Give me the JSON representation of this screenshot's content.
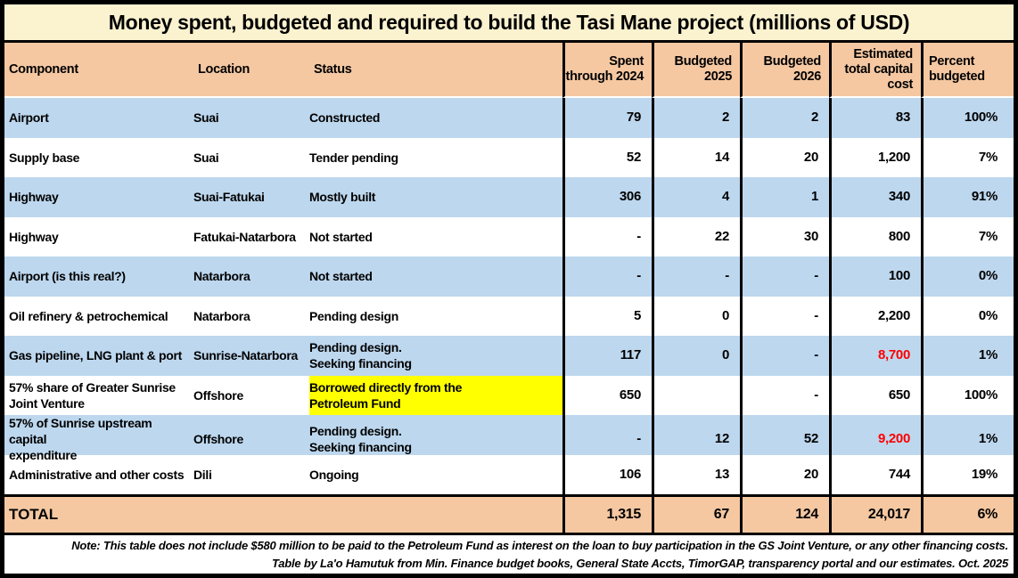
{
  "title": "Money spent, budgeted and required to build the Tasi Mane project (millions of USD)",
  "table": {
    "columns": [
      {
        "key": "component",
        "label": "Component"
      },
      {
        "key": "location",
        "label": "Location"
      },
      {
        "key": "status",
        "label": "Status"
      },
      {
        "key": "spent_2024",
        "label": "Spent through 2024"
      },
      {
        "key": "budgeted_2025",
        "label": "Budgeted 2025"
      },
      {
        "key": "budgeted_2026",
        "label": "Budgeted 2026"
      },
      {
        "key": "est_total",
        "label": "Estimated total capital cost"
      },
      {
        "key": "pct_budgeted",
        "label": "Percent budgeted"
      }
    ],
    "rows": [
      {
        "component": "Airport",
        "location": "Suai",
        "status": "Constructed",
        "spent_2024": "79",
        "budgeted_2025": "2",
        "budgeted_2026": "2",
        "est_total": "83",
        "pct_budgeted": "100%"
      },
      {
        "component": "Supply base",
        "location": "Suai",
        "status": "Tender pending",
        "spent_2024": "52",
        "budgeted_2025": "14",
        "budgeted_2026": "20",
        "est_total": "1,200",
        "pct_budgeted": "7%"
      },
      {
        "component": "Highway",
        "location": "Suai-Fatukai",
        "status": "Mostly built",
        "spent_2024": "306",
        "budgeted_2025": "4",
        "budgeted_2026": "1",
        "est_total": "340",
        "pct_budgeted": "91%"
      },
      {
        "component": "Highway",
        "location": "Fatukai-Natarbora",
        "status": "Not started",
        "spent_2024": "-",
        "budgeted_2025": "22",
        "budgeted_2026": "30",
        "est_total": "800",
        "pct_budgeted": "7%"
      },
      {
        "component": "Airport  (is this real?)",
        "location": "Natarbora",
        "status": "Not started",
        "spent_2024": "-",
        "budgeted_2025": "-",
        "budgeted_2026": "-",
        "est_total": "100",
        "pct_budgeted": "0%"
      },
      {
        "component": "Oil refinery & petrochemical",
        "location": "Natarbora",
        "status": "Pending design",
        "spent_2024": "5",
        "budgeted_2025": "0",
        "budgeted_2026": "-",
        "est_total": "2,200",
        "pct_budgeted": "0%"
      },
      {
        "component": "Gas pipeline, LNG plant & port",
        "location": "Sunrise-Natarbora",
        "status": "Pending design.\nSeeking financing",
        "spent_2024": "117",
        "budgeted_2025": "0",
        "budgeted_2026": "-",
        "est_total": "8,700",
        "est_total_red": true,
        "pct_budgeted": "1%"
      },
      {
        "component": "57% share of Greater Sunrise\nJoint Venture",
        "location": "Offshore",
        "status": "Borrowed directly from the\nPetroleum Fund",
        "status_highlight": true,
        "spent_2024": "650",
        "budgeted_2025": "",
        "budgeted_2026": "-",
        "est_total": "650",
        "pct_budgeted": "100%"
      },
      {
        "component": "57% of Sunrise upstream capital\nexpenditure",
        "location": "Offshore",
        "status": "Pending design.\nSeeking financing",
        "spent_2024": "-",
        "budgeted_2025": "12",
        "budgeted_2026": "52",
        "est_total": "9,200",
        "est_total_red": true,
        "pct_budgeted": "1%"
      },
      {
        "component": "Administrative and other costs",
        "location": "Dili",
        "status": "Ongoing",
        "spent_2024": "106",
        "budgeted_2025": "13",
        "budgeted_2026": "20",
        "est_total": "744",
        "pct_budgeted": "19%"
      }
    ],
    "total": {
      "label": "TOTAL",
      "spent_2024": "1,315",
      "budgeted_2025": "67",
      "budgeted_2026": "124",
      "est_total": "24,017",
      "pct_budgeted": "6%"
    }
  },
  "notes": [
    "Note: This table does not include $580 million to be paid to the Petroleum Fund as interest on the loan to buy participation in the GS Joint Venture, or any other financing costs.",
    "Table by La'o Hamutuk from Min. Finance budget books, General State Accts, TimorGAP, transparency portal and our estimates. Oct. 2025"
  ],
  "colors": {
    "title_bg": "#FBF2CF",
    "header_bg": "#F5C8A2",
    "row_blue": "#BDD7EE",
    "row_white": "#FFFFFF",
    "highlight_yellow": "#FFFF00",
    "alert_red": "#FF0000",
    "border_black": "#000000"
  }
}
